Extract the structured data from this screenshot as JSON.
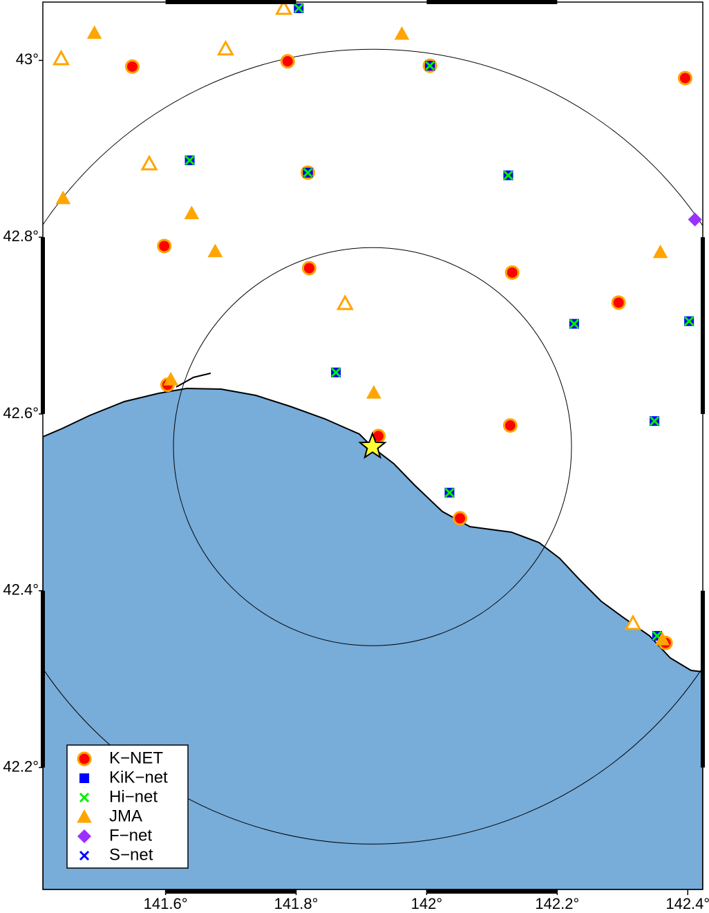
{
  "chart_data": {
    "type": "map",
    "xlim": [
      141.412,
      142.423
    ],
    "ylim": [
      42.062,
      43.066
    ],
    "xticks": [
      {
        "value": 141.6,
        "label": "141.6°"
      },
      {
        "value": 141.8,
        "label": "141.8°"
      },
      {
        "value": 142,
        "label": "142°"
      },
      {
        "value": 142.2,
        "label": "142.2°"
      },
      {
        "value": 142.4,
        "label": "142.4°"
      }
    ],
    "yticks": [
      {
        "value": 42.2,
        "label": "42.2°"
      },
      {
        "value": 42.4,
        "label": "42.4°"
      },
      {
        "value": 42.6,
        "label": "42.6°"
      },
      {
        "value": 42.8,
        "label": "42.8°"
      },
      {
        "value": 43,
        "label": "43°"
      }
    ],
    "epicenter": {
      "x": 141.917,
      "y": 42.563
    },
    "series": [
      {
        "name": "K−NET",
        "color": "#ff0000",
        "marker": "circle",
        "x": [
          141.549,
          141.787,
          142.005,
          142.396,
          141.598,
          141.82,
          142.131,
          142.294,
          141.603,
          141.926,
          142.128,
          142.051,
          142.366,
          141.818
        ],
        "y": [
          42.993,
          42.999,
          42.994,
          42.98,
          42.79,
          42.765,
          42.76,
          42.726,
          42.633,
          42.575,
          42.587,
          42.482,
          42.341,
          42.873
        ]
      },
      {
        "name": "KiK−net",
        "color": "#0000ff",
        "marker": "square",
        "x": [
          141.637,
          141.818,
          141.804,
          142.005,
          142.125,
          141.861,
          142.226,
          142.402,
          142.349,
          142.035,
          142.353
        ],
        "y": [
          42.887,
          42.873,
          43.059,
          42.994,
          42.87,
          42.647,
          42.702,
          42.705,
          42.592,
          42.511,
          42.349
        ]
      },
      {
        "name": "Hi−net",
        "color": "#00ee00",
        "marker": "cross",
        "x": [
          141.637,
          141.818,
          141.804,
          142.005,
          142.125,
          141.861,
          142.226,
          142.402,
          142.349,
          142.035,
          142.353
        ],
        "y": [
          42.887,
          42.873,
          43.059,
          42.994,
          42.87,
          42.647,
          42.702,
          42.705,
          42.592,
          42.511,
          42.349
        ]
      },
      {
        "name": "JMA",
        "color": "#ffa500",
        "marker": "triangle",
        "x": [
          141.491,
          141.962,
          141.443,
          141.64,
          141.676,
          141.919,
          142.358,
          141.608,
          142.361,
          141.44,
          141.781,
          141.692,
          141.575,
          141.875,
          142.316
        ],
        "y": [
          43.031,
          43.03,
          42.844,
          42.827,
          42.784,
          42.624,
          42.783,
          42.639,
          42.345,
          43.002,
          43.059,
          43.013,
          42.883,
          42.725,
          42.363
        ],
        "hollow": [
          false,
          false,
          false,
          false,
          false,
          false,
          false,
          false,
          false,
          true,
          true,
          true,
          true,
          true,
          true
        ]
      },
      {
        "name": "F−net",
        "color": "#9b30ff",
        "marker": "diamond",
        "x": [
          142.411
        ],
        "y": [
          42.82
        ]
      },
      {
        "name": "S−net",
        "color": "#0000ff",
        "marker": "cross",
        "x": [],
        "y": []
      }
    ]
  }
}
